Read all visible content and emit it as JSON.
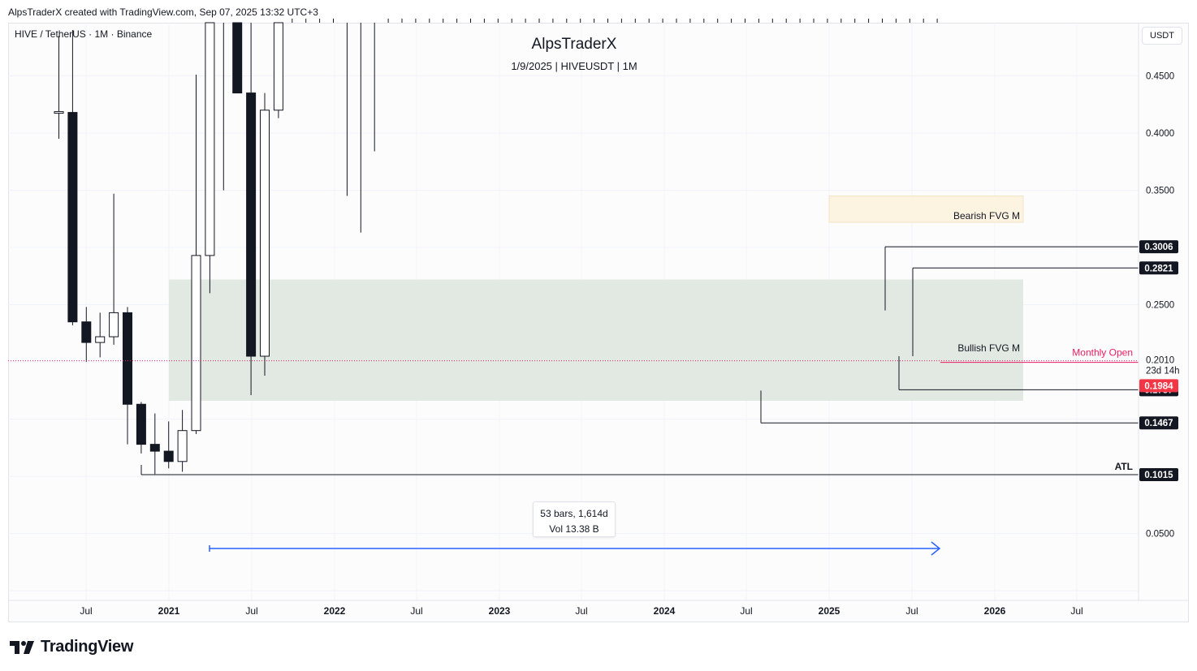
{
  "header": {
    "credit": "AlpsTraderX created with TradingView.com, Sep 07, 2025 13:32 UTC+3",
    "symbol": "HIVE / TetherUS · 1M · Binance",
    "watermark_title": "AlpsTraderX",
    "watermark_sub": "1/9/2025 | HIVEUSDT | 1M",
    "currency_button": "USDT"
  },
  "footer": {
    "brand": "TradingView"
  },
  "colors": {
    "bullish_zone": "#e2e8e2",
    "bearish_zone": "#fdf3e1",
    "monthly_open": "#e91e63",
    "measure_arrow": "#2962ff",
    "price_tag_dark": "#131722",
    "price_tag_current": "#f23645",
    "candle": "#131722"
  },
  "measure": {
    "line1": "53 bars, 1,614d",
    "line2": "Vol 13.38 B"
  },
  "chart_data": {
    "type": "candlestick",
    "title": "",
    "ylim": [
      -0.0084,
      0.4964
    ],
    "x_ticks": [
      "Jul",
      "2021",
      "Jul",
      "2022",
      "Jul",
      "2023",
      "Jul",
      "2024",
      "Jul",
      "2025",
      "Jul",
      "2026",
      "Jul"
    ],
    "y_ticks": [
      "0.4500",
      "0.4000",
      "0.3500",
      "0.2500",
      "0.0500"
    ],
    "candles": [
      {
        "o": 0.418,
        "h": 0.485,
        "l": 0.395,
        "c": 0.418
      },
      {
        "o": 0.418,
        "h": 0.49,
        "l": 0.232,
        "c": 0.235
      },
      {
        "o": 0.235,
        "h": 0.248,
        "l": 0.2,
        "c": 0.217
      },
      {
        "o": 0.217,
        "h": 0.243,
        "l": 0.204,
        "c": 0.222
      },
      {
        "o": 0.222,
        "h": 0.347,
        "l": 0.215,
        "c": 0.243
      },
      {
        "o": 0.243,
        "h": 0.248,
        "l": 0.128,
        "c": 0.163
      },
      {
        "o": 0.163,
        "h": 0.165,
        "l": 0.12,
        "c": 0.128
      },
      {
        "o": 0.128,
        "h": 0.155,
        "l": 0.102,
        "c": 0.122
      },
      {
        "o": 0.122,
        "h": 0.148,
        "l": 0.107,
        "c": 0.113
      },
      {
        "o": 0.113,
        "h": 0.158,
        "l": 0.104,
        "c": 0.14
      },
      {
        "o": 0.14,
        "h": 0.451,
        "l": 0.137,
        "c": 0.293
      },
      {
        "o": 0.293,
        "h": 0.5,
        "l": 0.26,
        "c": 0.5
      },
      {
        "o": 0.5,
        "h": 0.5,
        "l": 0.35,
        "c": 0.5
      },
      {
        "o": 0.5,
        "h": 0.5,
        "l": 0.435,
        "c": 0.435
      },
      {
        "o": 0.435,
        "h": 0.5,
        "l": 0.171,
        "c": 0.205
      },
      {
        "o": 0.205,
        "h": 0.435,
        "l": 0.188,
        "c": 0.42
      },
      {
        "o": 0.42,
        "h": 0.5,
        "l": 0.413,
        "c": 0.5
      },
      {
        "o": 0.5,
        "h": 0.5,
        "l": 0.5,
        "c": 0.5
      },
      {
        "o": 0.5,
        "h": 0.5,
        "l": 0.5,
        "c": 0.5
      },
      {
        "o": 0.5,
        "h": 0.5,
        "l": 0.5,
        "c": 0.5
      },
      {
        "o": 0.5,
        "h": 0.5,
        "l": 0.5,
        "c": 0.5
      },
      {
        "o": 0.5,
        "h": 0.5,
        "l": 0.345,
        "c": 0.5
      },
      {
        "o": 0.5,
        "h": 0.5,
        "l": 0.313,
        "c": 0.5
      },
      {
        "o": 0.5,
        "h": 0.5,
        "l": 0.384,
        "c": 0.5
      },
      {
        "o": 0.5,
        "h": 0.5,
        "l": 0.5,
        "c": 0.5
      },
      {
        "o": 0.5,
        "h": 0.5,
        "l": 0.5,
        "c": 0.5
      },
      {
        "o": 0.5,
        "h": 0.5,
        "l": 0.5,
        "c": 0.5
      },
      {
        "o": 0.5,
        "h": 0.5,
        "l": 0.5,
        "c": 0.5
      },
      {
        "o": 0.5,
        "h": 0.5,
        "l": 0.5,
        "c": 0.5
      },
      {
        "o": 0.5,
        "h": 0.5,
        "l": 0.5,
        "c": 0.5
      },
      {
        "o": 0.5,
        "h": 0.5,
        "l": 0.5,
        "c": 0.5
      },
      {
        "o": 0.5,
        "h": 0.5,
        "l": 0.5,
        "c": 0.5
      },
      {
        "o": 0.5,
        "h": 0.5,
        "l": 0.5,
        "c": 0.5
      },
      {
        "o": 0.5,
        "h": 0.5,
        "l": 0.5,
        "c": 0.5
      },
      {
        "o": 0.5,
        "h": 0.5,
        "l": 0.5,
        "c": 0.5
      },
      {
        "o": 0.5,
        "h": 0.5,
        "l": 0.5,
        "c": 0.5
      },
      {
        "o": 0.5,
        "h": 0.5,
        "l": 0.5,
        "c": 0.5
      },
      {
        "o": 0.5,
        "h": 0.5,
        "l": 0.5,
        "c": 0.5
      },
      {
        "o": 0.5,
        "h": 0.5,
        "l": 0.5,
        "c": 0.5
      },
      {
        "o": 0.5,
        "h": 0.5,
        "l": 0.5,
        "c": 0.5
      },
      {
        "o": 0.5,
        "h": 0.5,
        "l": 0.5,
        "c": 0.5
      },
      {
        "o": 0.5,
        "h": 0.5,
        "l": 0.5,
        "c": 0.5
      },
      {
        "o": 0.5,
        "h": 0.5,
        "l": 0.5,
        "c": 0.5
      },
      {
        "o": 0.5,
        "h": 0.5,
        "l": 0.5,
        "c": 0.5
      },
      {
        "o": 0.5,
        "h": 0.5,
        "l": 0.5,
        "c": 0.5
      },
      {
        "o": 0.5,
        "h": 0.5,
        "l": 0.5,
        "c": 0.5
      },
      {
        "o": 0.5,
        "h": 0.5,
        "l": 0.5,
        "c": 0.5
      },
      {
        "o": 0.5,
        "h": 0.5,
        "l": 0.5,
        "c": 0.5
      },
      {
        "o": 0.5,
        "h": 0.5,
        "l": 0.5,
        "c": 0.5
      },
      {
        "o": 0.5,
        "h": 0.5,
        "l": 0.5,
        "c": 0.5
      },
      {
        "o": 0.5,
        "h": 0.5,
        "l": 0.5,
        "c": 0.5
      },
      {
        "o": 0.5,
        "h": 0.5,
        "l": 0.5,
        "c": 0.5
      },
      {
        "o": 0.5,
        "h": 0.5,
        "l": 0.5,
        "c": 0.5
      },
      {
        "o": 0.5,
        "h": 0.5,
        "l": 0.5,
        "c": 0.5
      },
      {
        "o": 0.5,
        "h": 0.5,
        "l": 0.5,
        "c": 0.5
      },
      {
        "o": 0.5,
        "h": 0.5,
        "l": 0.5,
        "c": 0.5
      },
      {
        "o": 0.5,
        "h": 0.5,
        "l": 0.5,
        "c": 0.5
      },
      {
        "o": 0.5,
        "h": 0.5,
        "l": 0.5,
        "c": 0.5
      },
      {
        "o": 0.5,
        "h": 0.5,
        "l": 0.5,
        "c": 0.5
      },
      {
        "o": 0.5,
        "h": 0.5,
        "l": 0.5,
        "c": 0.5
      },
      {
        "o": 0.5,
        "h": 0.5,
        "l": 0.5,
        "c": 0.5
      },
      {
        "o": 0.5,
        "h": 0.5,
        "l": 0.5,
        "c": 0.5
      },
      {
        "o": 0.5,
        "h": 0.5,
        "l": 0.5,
        "c": 0.5
      },
      {
        "o": 0.5,
        "h": 0.5,
        "l": 0.5,
        "c": 0.5
      },
      {
        "o": 0.5,
        "h": 0.5,
        "l": 0.5,
        "c": 0.5
      },
      {
        "o": 0.5,
        "h": 0.5,
        "l": 0.5,
        "c": 0.5
      },
      {
        "o": 0.5,
        "h": 0.5,
        "l": 0.5,
        "c": 0.5
      },
      {
        "o": 0.5,
        "h": 0.5,
        "l": 0.5,
        "c": 0.5
      }
    ],
    "zones": [
      {
        "label": "Bullish FVG M",
        "top": 0.272,
        "bottom": 0.166,
        "kind": "bullish"
      },
      {
        "label": "Bearish FVG M",
        "top": 0.345,
        "bottom": 0.322,
        "kind": "bearish"
      }
    ],
    "levels": [
      {
        "value": 0.3006,
        "label": "0.3006"
      },
      {
        "value": 0.2821,
        "label": "0.2821"
      },
      {
        "value": 0.1757,
        "label": "0.1757"
      },
      {
        "value": 0.1467,
        "label": "0.1467"
      },
      {
        "value": 0.1015,
        "label": "0.1015",
        "note": "ATL"
      }
    ],
    "monthly_open": {
      "value": 0.201,
      "label": "Monthly Open",
      "price_label": "0.2010",
      "countdown": "23d 14h"
    },
    "current_price": {
      "value": 0.1984,
      "label": "0.1984"
    }
  }
}
